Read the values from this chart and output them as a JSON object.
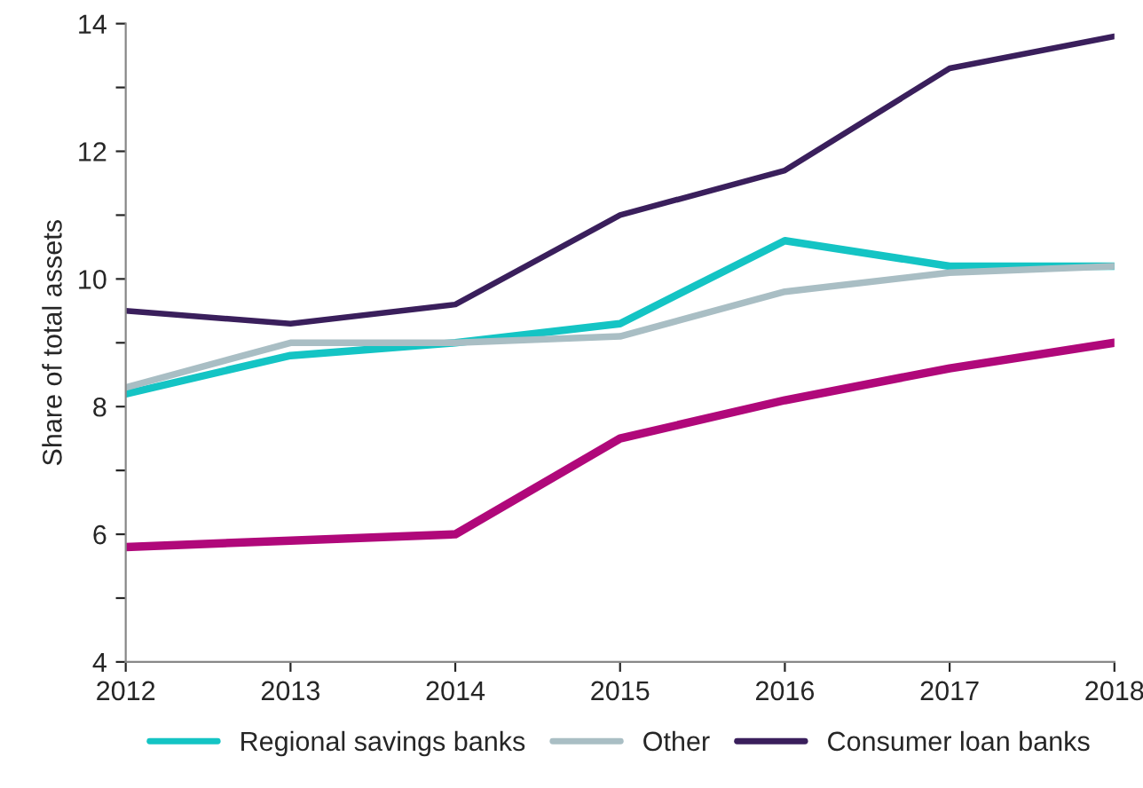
{
  "chart_data": {
    "type": "line",
    "ylabel": "Share of total assets",
    "x": [
      2012,
      2013,
      2014,
      2015,
      2016,
      2017,
      2018
    ],
    "series": [
      {
        "color": "#b0087a",
        "values": [
          5.8,
          5.9,
          6.0,
          7.5,
          8.1,
          8.6,
          9.0
        ]
      },
      {
        "name": "Regional savings banks",
        "color": "#14c4c4",
        "values": [
          8.2,
          8.8,
          9.0,
          9.3,
          10.6,
          10.2,
          10.2
        ]
      },
      {
        "name": "Other",
        "color": "#a9bec4",
        "values": [
          8.3,
          9.0,
          9.0,
          9.1,
          9.8,
          10.1,
          10.2
        ]
      },
      {
        "name": "Consumer loan banks",
        "color": "#3a1f5c",
        "values": [
          9.5,
          9.3,
          9.6,
          11.0,
          11.7,
          13.3,
          13.8
        ]
      }
    ],
    "xlim": [
      2012,
      2018
    ],
    "xticks": [
      2012,
      2013,
      2014,
      2015,
      2016,
      2017,
      2018
    ],
    "ylim": [
      4,
      14
    ],
    "yticks": [
      4,
      {
        "value": 5,
        "label": null
      },
      6,
      {
        "value": 7,
        "label": null
      },
      8,
      {
        "value": 9,
        "label": null
      },
      10,
      {
        "value": 11,
        "label": null
      },
      12,
      {
        "value": 13,
        "label": null
      },
      14
    ],
    "grid": false,
    "legend": "bottom",
    "marker": "none",
    "line_style": "solid"
  }
}
